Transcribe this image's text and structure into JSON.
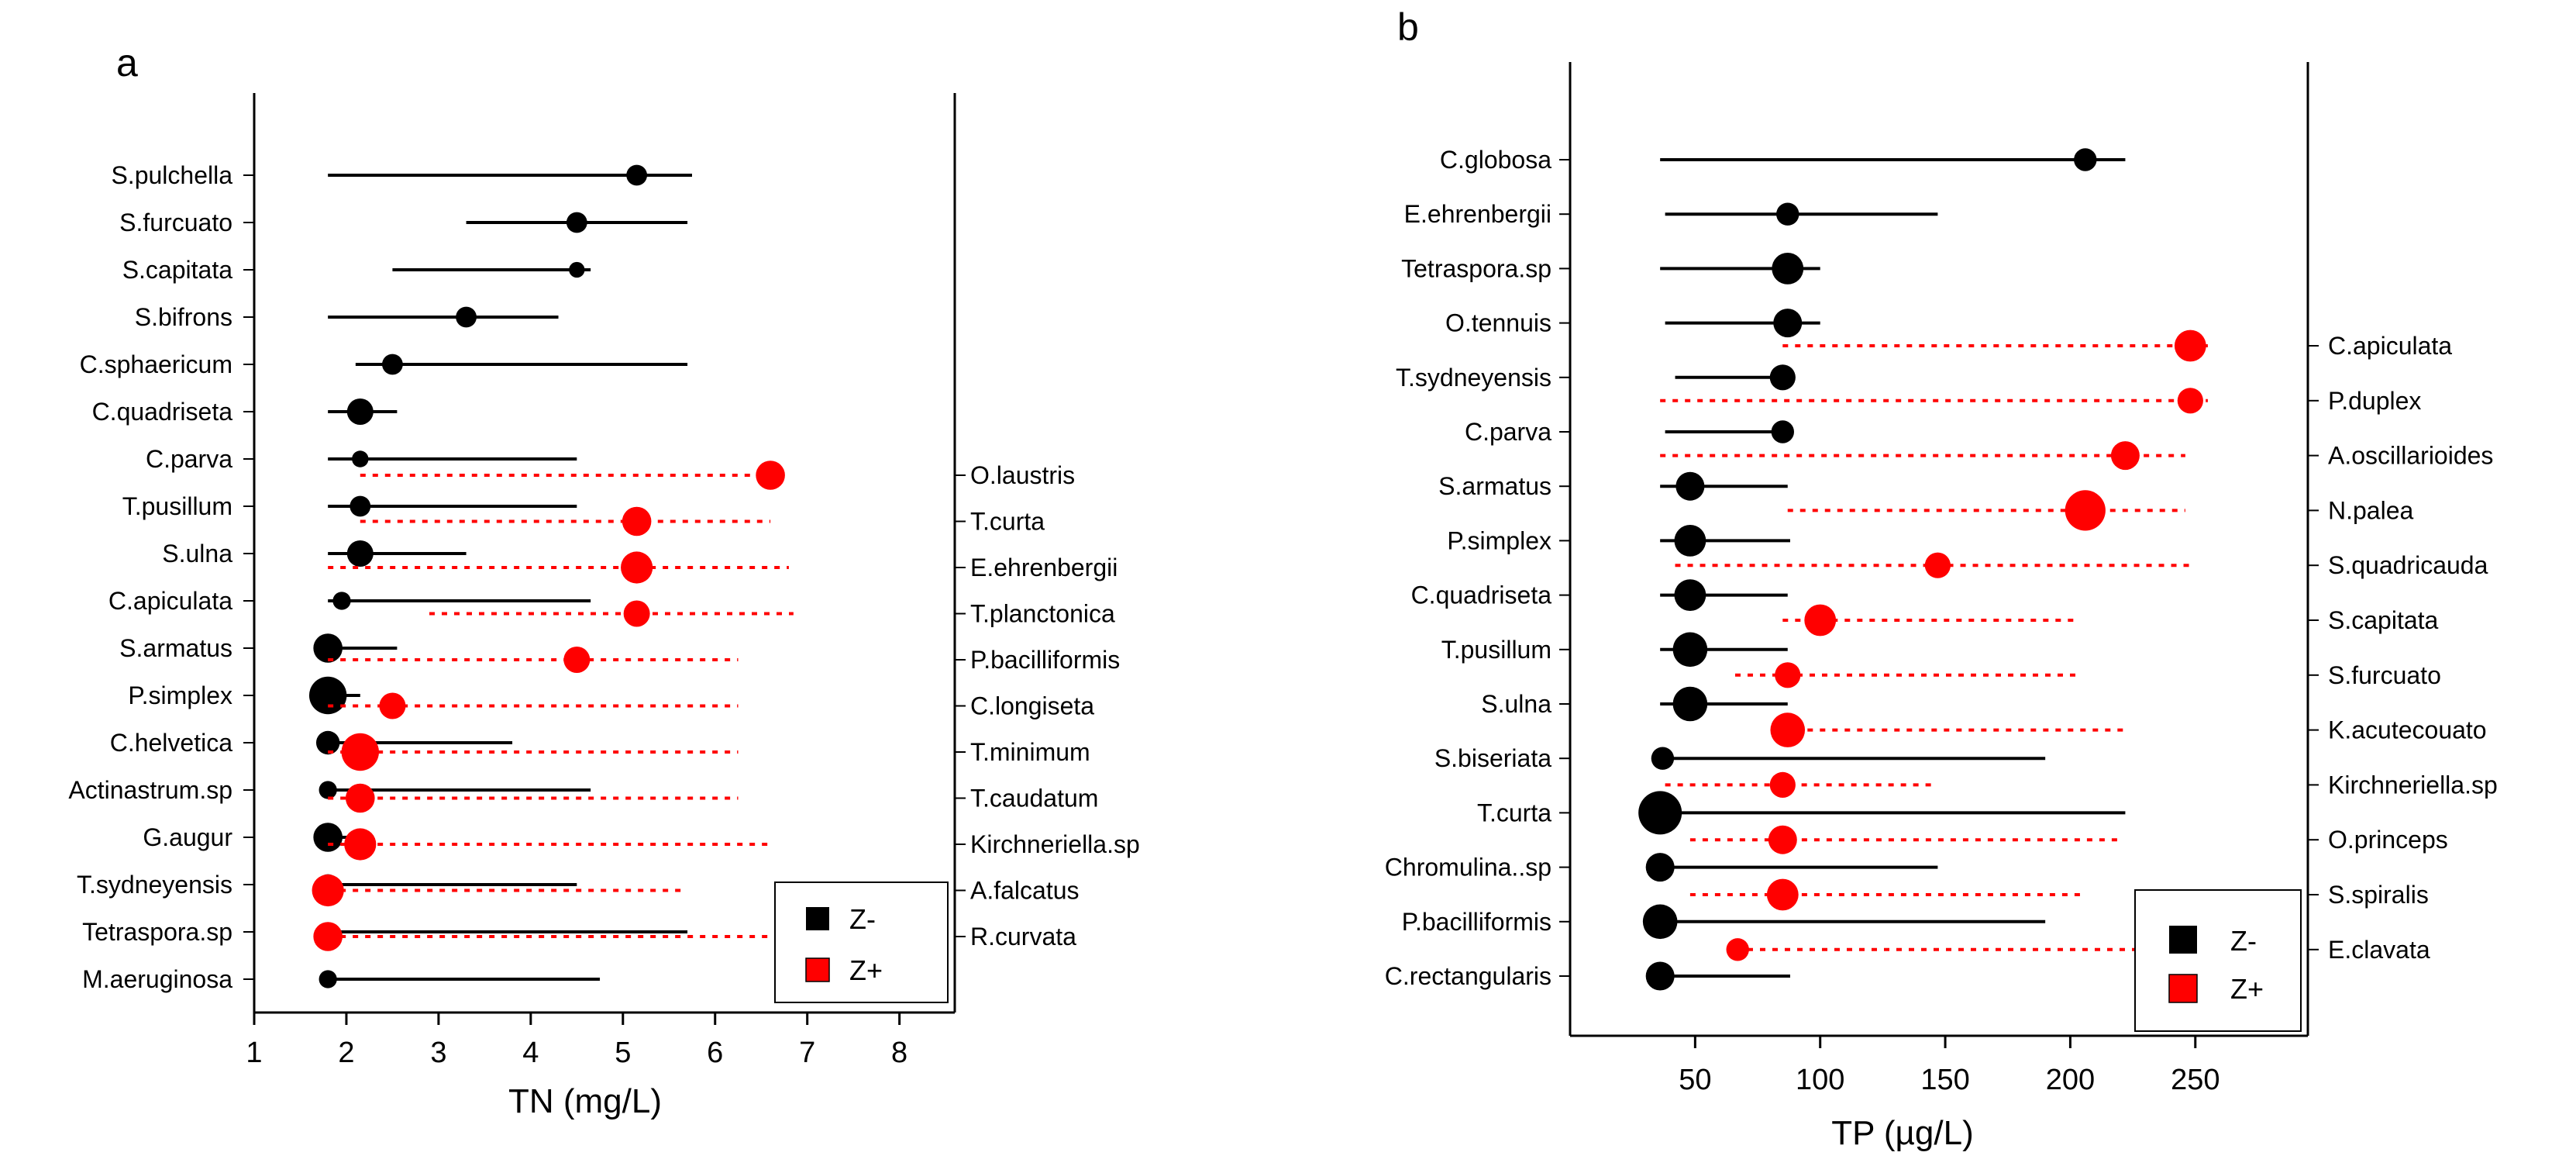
{
  "chart_data": [
    {
      "panel": "a",
      "type": "scatter",
      "subtype": "taxa range plot (TITAN change points)",
      "xlabel": "TN (mg/L)",
      "xlim": [
        1,
        8.6
      ],
      "xticks": [
        1,
        2,
        3,
        4,
        5,
        6,
        7,
        8
      ],
      "grid": false,
      "legend": {
        "position": "bottom-right",
        "entries": [
          {
            "label": "Z-",
            "color": "#000000"
          },
          {
            "label": "Z+",
            "color": "#ff0000"
          }
        ]
      },
      "series": [
        {
          "name": "Z-",
          "color": "#000000",
          "label_side": "left",
          "points": [
            {
              "taxon": "S.pulchella",
              "x": 5.15,
              "lo": 1.8,
              "hi": 5.75,
              "size": 0.3
            },
            {
              "taxon": "S.furcuato",
              "x": 4.5,
              "lo": 3.3,
              "hi": 5.7,
              "size": 0.3
            },
            {
              "taxon": "S.capitata",
              "x": 4.5,
              "lo": 2.5,
              "hi": 4.65,
              "size": 0.12
            },
            {
              "taxon": "S.bifrons",
              "x": 3.3,
              "lo": 1.8,
              "hi": 4.3,
              "size": 0.3
            },
            {
              "taxon": "C.sphaericum",
              "x": 2.5,
              "lo": 2.1,
              "hi": 5.7,
              "size": 0.3
            },
            {
              "taxon": "C.quadriseta",
              "x": 2.15,
              "lo": 1.8,
              "hi": 2.55,
              "size": 0.5
            },
            {
              "taxon": "C.parva",
              "x": 2.15,
              "lo": 1.8,
              "hi": 4.5,
              "size": 0.15
            },
            {
              "taxon": "T.pusillum",
              "x": 2.15,
              "lo": 1.8,
              "hi": 4.5,
              "size": 0.3
            },
            {
              "taxon": "S.ulna",
              "x": 2.15,
              "lo": 1.8,
              "hi": 3.3,
              "size": 0.5
            },
            {
              "taxon": "C.apiculata",
              "x": 1.95,
              "lo": 1.8,
              "hi": 4.65,
              "size": 0.2
            },
            {
              "taxon": "S.armatus",
              "x": 1.8,
              "lo": 1.8,
              "hi": 2.55,
              "size": 0.6
            },
            {
              "taxon": "P.simplex",
              "x": 1.8,
              "lo": 1.8,
              "hi": 2.15,
              "size": 0.9
            },
            {
              "taxon": "C.helvetica",
              "x": 1.8,
              "lo": 1.8,
              "hi": 3.8,
              "size": 0.4
            },
            {
              "taxon": "Actinastrum.sp",
              "x": 1.8,
              "lo": 1.8,
              "hi": 4.65,
              "size": 0.2
            },
            {
              "taxon": "G.augur",
              "x": 1.8,
              "lo": 1.8,
              "hi": 2.15,
              "size": 0.6
            },
            {
              "taxon": "T.sydneyensis",
              "x": 1.8,
              "lo": 1.8,
              "hi": 4.5,
              "size": 0.3
            },
            {
              "taxon": "Tetraspora.sp",
              "x": 1.8,
              "lo": 1.8,
              "hi": 5.7,
              "size": 0.2
            },
            {
              "taxon": "M.aeruginosa",
              "x": 1.8,
              "lo": 1.8,
              "hi": 4.75,
              "size": 0.2
            }
          ]
        },
        {
          "name": "Z+",
          "color": "#ff0000",
          "label_side": "right",
          "points": [
            {
              "taxon": "O.laustris",
              "x": 6.6,
              "lo": 2.15,
              "hi": 6.7,
              "size": 0.6
            },
            {
              "taxon": "T.curta",
              "x": 5.15,
              "lo": 2.15,
              "hi": 6.6,
              "size": 0.6
            },
            {
              "taxon": "E.ehrenbergii",
              "x": 5.15,
              "lo": 1.8,
              "hi": 6.8,
              "size": 0.7
            },
            {
              "taxon": "T.planctonica",
              "x": 5.15,
              "lo": 2.9,
              "hi": 6.85,
              "size": 0.5
            },
            {
              "taxon": "P.bacilliformis",
              "x": 4.5,
              "lo": 1.8,
              "hi": 6.25,
              "size": 0.5
            },
            {
              "taxon": "C.longiseta",
              "x": 2.5,
              "lo": 1.8,
              "hi": 6.25,
              "size": 0.5
            },
            {
              "taxon": "T.minimum",
              "x": 2.15,
              "lo": 1.8,
              "hi": 6.25,
              "size": 0.9
            },
            {
              "taxon": "T.caudatum",
              "x": 2.15,
              "lo": 1.8,
              "hi": 6.25,
              "size": 0.6
            },
            {
              "taxon": "Kirchneriella.sp",
              "x": 2.15,
              "lo": 1.8,
              "hi": 6.6,
              "size": 0.7
            },
            {
              "taxon": "A.falcatus",
              "x": 1.8,
              "lo": 1.8,
              "hi": 5.7,
              "size": 0.7
            },
            {
              "taxon": "R.curvata",
              "x": 1.8,
              "lo": 1.8,
              "hi": 6.75,
              "size": 0.6
            }
          ]
        }
      ]
    },
    {
      "panel": "b",
      "type": "scatter",
      "subtype": "taxa range plot (TITAN change points)",
      "xlabel": "TP (µg/L)",
      "xlim": [
        0,
        295
      ],
      "xticks": [
        50,
        100,
        150,
        200,
        250
      ],
      "grid": false,
      "legend": {
        "position": "bottom-right",
        "entries": [
          {
            "label": "Z-",
            "color": "#000000"
          },
          {
            "label": "Z+",
            "color": "#ff0000"
          }
        ]
      },
      "series": [
        {
          "name": "Z-",
          "color": "#000000",
          "label_side": "left",
          "points": [
            {
              "taxon": "C.globosa",
              "x": 206,
              "lo": 36,
              "hi": 222,
              "size": 0.3
            },
            {
              "taxon": "E.ehrenbergii",
              "x": 87,
              "lo": 38,
              "hi": 147,
              "size": 0.3
            },
            {
              "taxon": "Tetraspora.sp",
              "x": 87,
              "lo": 36,
              "hi": 100,
              "size": 0.6
            },
            {
              "taxon": "O.tennuis",
              "x": 87,
              "lo": 38,
              "hi": 100,
              "size": 0.5
            },
            {
              "taxon": "T.sydneyensis",
              "x": 85,
              "lo": 42,
              "hi": 87,
              "size": 0.4
            },
            {
              "taxon": "C.parva",
              "x": 85,
              "lo": 38,
              "hi": 87,
              "size": 0.3
            },
            {
              "taxon": "S.armatus",
              "x": 48,
              "lo": 36,
              "hi": 87,
              "size": 0.5
            },
            {
              "taxon": "P.simplex",
              "x": 48,
              "lo": 36,
              "hi": 88,
              "size": 0.6
            },
            {
              "taxon": "C.quadriseta",
              "x": 48,
              "lo": 36,
              "hi": 87,
              "size": 0.6
            },
            {
              "taxon": "T.pusillum",
              "x": 48,
              "lo": 36,
              "hi": 87,
              "size": 0.7
            },
            {
              "taxon": "S.ulna",
              "x": 48,
              "lo": 36,
              "hi": 87,
              "size": 0.7
            },
            {
              "taxon": "S.biseriata",
              "x": 37,
              "lo": 36,
              "hi": 190,
              "size": 0.3
            },
            {
              "taxon": "T.curta",
              "x": 36,
              "lo": 36,
              "hi": 222,
              "size": 1.0
            },
            {
              "taxon": "Chromulina..sp",
              "x": 36,
              "lo": 36,
              "hi": 147,
              "size": 0.5
            },
            {
              "taxon": "P.bacilliformis",
              "x": 36,
              "lo": 36,
              "hi": 190,
              "size": 0.7
            },
            {
              "taxon": "C.rectangularis",
              "x": 36,
              "lo": 36,
              "hi": 88,
              "size": 0.5
            }
          ]
        },
        {
          "name": "Z+",
          "color": "#ff0000",
          "label_side": "right",
          "points": [
            {
              "taxon": "C.apiculata",
              "x": 248,
              "lo": 85,
              "hi": 255,
              "size": 0.6
            },
            {
              "taxon": "P.duplex",
              "x": 248,
              "lo": 36,
              "hi": 255,
              "size": 0.4
            },
            {
              "taxon": "A.oscillarioides",
              "x": 222,
              "lo": 36,
              "hi": 246,
              "size": 0.5
            },
            {
              "taxon": "N.palea",
              "x": 206,
              "lo": 87,
              "hi": 246,
              "size": 0.9
            },
            {
              "taxon": "S.quadricauda",
              "x": 147,
              "lo": 42,
              "hi": 248,
              "size": 0.4
            },
            {
              "taxon": "S.capitata",
              "x": 100,
              "lo": 85,
              "hi": 202,
              "size": 0.6
            },
            {
              "taxon": "S.furcuato",
              "x": 87,
              "lo": 66,
              "hi": 204,
              "size": 0.4
            },
            {
              "taxon": "K.acutecouato",
              "x": 87,
              "lo": 85,
              "hi": 222,
              "size": 0.7
            },
            {
              "taxon": "Kirchneriella.sp",
              "x": 85,
              "lo": 38,
              "hi": 147,
              "size": 0.4
            },
            {
              "taxon": "O.princeps",
              "x": 85,
              "lo": 48,
              "hi": 220,
              "size": 0.5
            },
            {
              "taxon": "S.spiralis",
              "x": 85,
              "lo": 48,
              "hi": 204,
              "size": 0.6
            },
            {
              "taxon": "E.clavata",
              "x": 67,
              "lo": 66,
              "hi": 270,
              "size": 0.3
            }
          ]
        }
      ]
    }
  ]
}
